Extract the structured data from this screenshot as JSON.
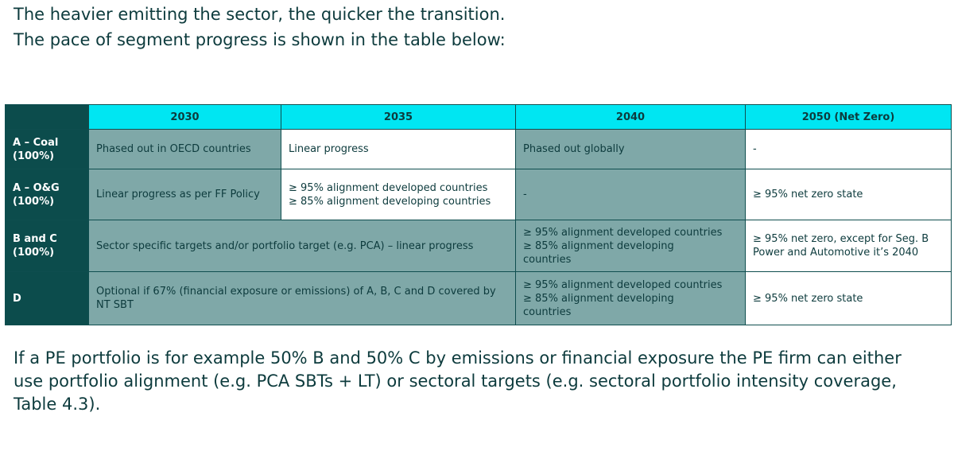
{
  "intro": {
    "line1": "The heavier emitting the sector, the quicker the transition.",
    "line2": "The pace of segment progress is shown in the table below:"
  },
  "table": {
    "headers": [
      "2030",
      "2035",
      "2040",
      "2050 (Net Zero)"
    ],
    "rows": [
      {
        "segment": [
          "A – Coal",
          "(100%)"
        ],
        "c2030": "Phased out in OECD countries",
        "c2035": "Linear progress",
        "c2040": "Phased out globally",
        "c2050": "-"
      },
      {
        "segment": [
          "A – O&G",
          "(100%)"
        ],
        "c2030": "Linear progress as per FF Policy",
        "c2035": [
          "≥ 95% alignment developed countries",
          "≥ 85% alignment developing countries"
        ],
        "c2040": "-",
        "c2050": "≥ 95% net zero state"
      },
      {
        "segment": [
          "B and C",
          "(100%)"
        ],
        "c2030_2035": "Sector specific targets and/or portfolio target (e.g. PCA) – linear progress",
        "c2040": [
          "≥ 95% alignment developed countries",
          "≥ 85% alignment developing",
          "countries"
        ],
        "c2050": [
          "≥ 95% net zero, except for Seg. B",
          "Power and Automotive it’s 2040"
        ]
      },
      {
        "segment": [
          "D"
        ],
        "c2030_2035": "Optional if 67% (financial exposure or emissions) of A, B, C and D covered by NT SBT",
        "c2040": [
          "≥ 95% alignment developed countries",
          "≥ 85% alignment developing",
          "countries"
        ],
        "c2050": "≥ 95% net zero state"
      }
    ]
  },
  "outro": "If a PE portfolio is for example 50% B and 50% C by emissions or financial exposure the PE firm can either use portfolio alignment (e.g. PCA SBTs + LT) or sectoral targets (e.g. sectoral portfolio intensity coverage, Table 4.3)."
}
